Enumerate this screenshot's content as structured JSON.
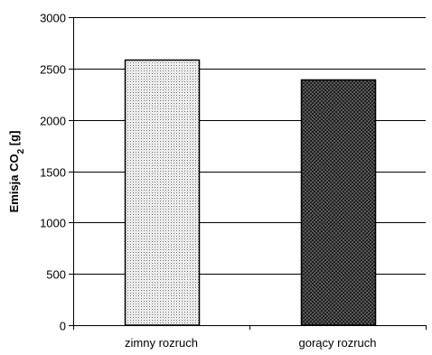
{
  "chart_data": {
    "type": "bar",
    "title": "",
    "xlabel": "",
    "ylabel": "Emisja CO2 [g]",
    "ylabel_parts": {
      "main": "Emisja CO",
      "sub": "2",
      "unit": " [g]"
    },
    "categories": [
      "zimny rozruch",
      "gorący rozruch"
    ],
    "values": [
      2590,
      2390
    ],
    "ylim": [
      0,
      3000
    ],
    "yticks": [
      0,
      500,
      1000,
      1500,
      2000,
      2500,
      3000
    ],
    "grid": true,
    "legend": false,
    "bar_styles": [
      "light-dotted",
      "dark-crosshatch"
    ]
  }
}
